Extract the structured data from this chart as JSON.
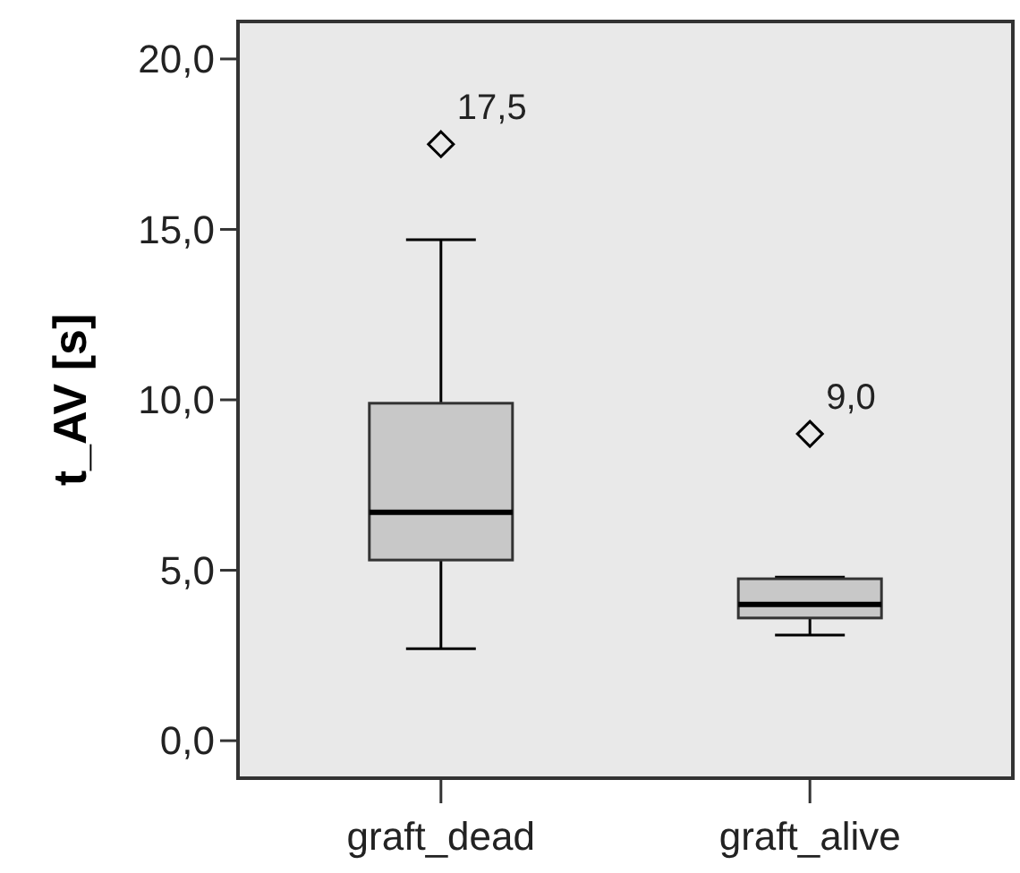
{
  "chart_data": {
    "type": "box",
    "ylabel": "t_AV [s]",
    "categories": [
      "graft_dead",
      "graft_alive"
    ],
    "boxes": [
      {
        "low": 2.7,
        "q1": 5.3,
        "median": 6.7,
        "q3": 9.9,
        "high": 14.7,
        "outliers": [
          17.5
        ]
      },
      {
        "low": 3.1,
        "q1": 3.6,
        "median": 4.0,
        "q3": 4.75,
        "high": 4.8,
        "outliers": [
          9.0
        ]
      }
    ],
    "color": "#c8c8c8",
    "marker": "diamond",
    "ylim": [
      -1.1,
      21.1
    ],
    "yticks": [
      {
        "value": 0,
        "label": "0,0"
      },
      {
        "value": 5,
        "label": "5,0"
      },
      {
        "value": 10,
        "label": "10,0"
      },
      {
        "value": 15,
        "label": "15,0"
      },
      {
        "value": 20,
        "label": "20,0"
      }
    ],
    "annotations": [
      "17,5",
      "9,0"
    ],
    "grid": false
  }
}
